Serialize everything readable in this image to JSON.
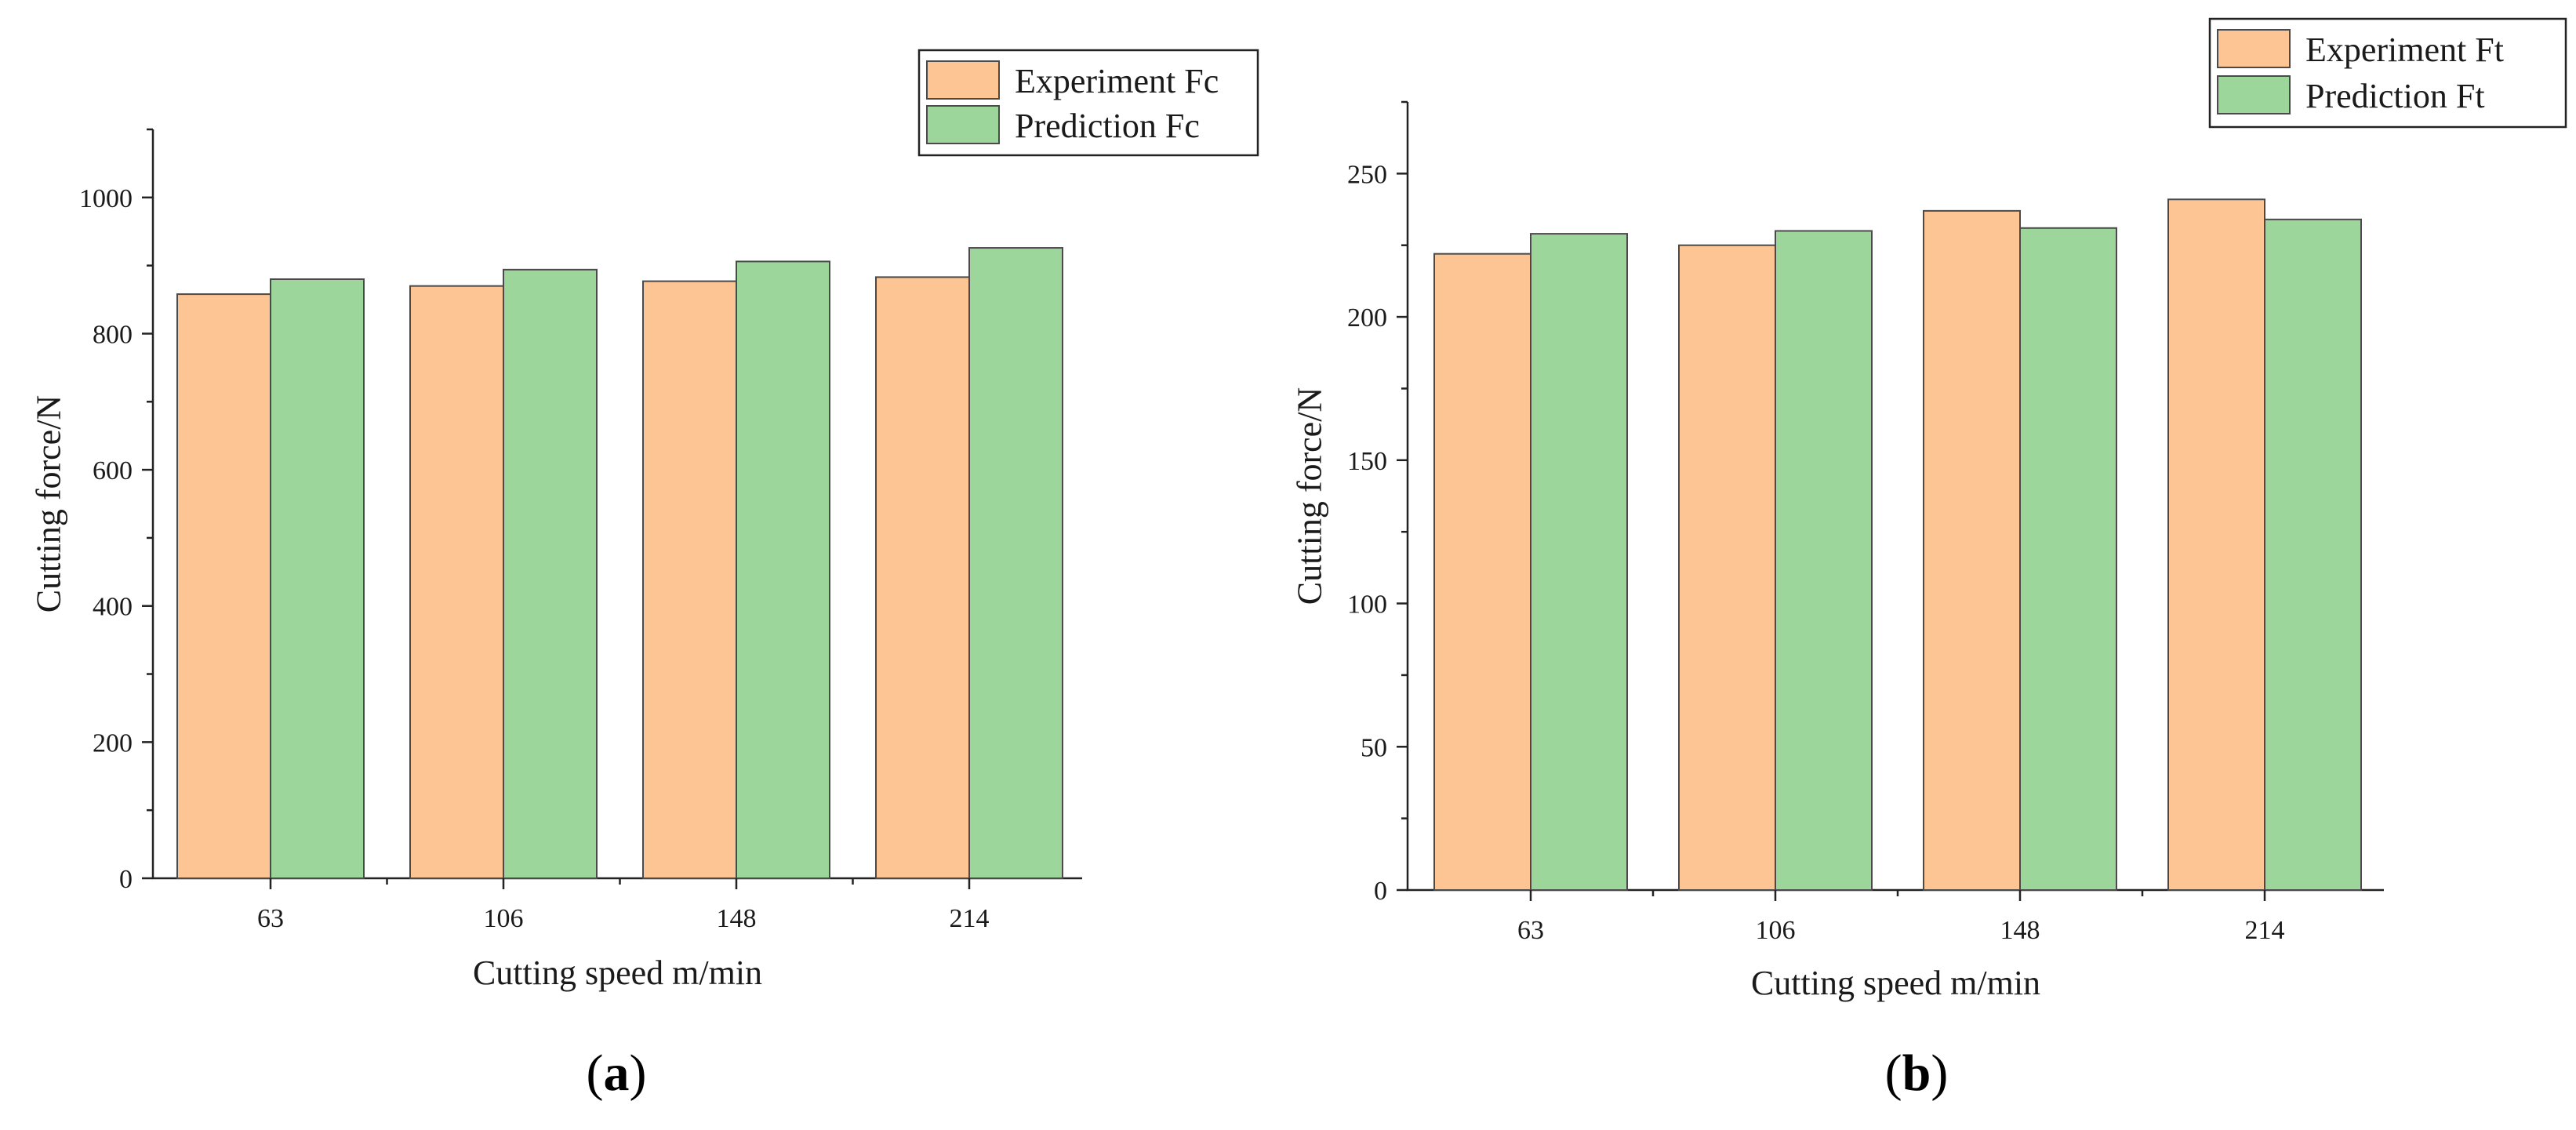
{
  "chart_data": [
    {
      "type": "bar",
      "panel": "a",
      "title": "",
      "xlabel": "Cutting speed m/min",
      "ylabel": "Cutting force/N",
      "categories": [
        "63",
        "106",
        "148",
        "214"
      ],
      "ylim": [
        0,
        1100
      ],
      "yticks": [
        0,
        200,
        400,
        600,
        800,
        1000
      ],
      "series": [
        {
          "name": "Experiment Fc",
          "color": "#fcc593",
          "values": [
            858,
            870,
            877,
            883
          ]
        },
        {
          "name": "Prediction Fc",
          "color": "#9cd69b",
          "values": [
            880,
            894,
            906,
            926
          ]
        }
      ],
      "legend_position": "top-right",
      "grid": false
    },
    {
      "type": "bar",
      "panel": "b",
      "title": "",
      "xlabel": "Cutting speed m/min",
      "ylabel": "Cutting force/N",
      "categories": [
        "63",
        "106",
        "148",
        "214"
      ],
      "ylim": [
        0,
        275
      ],
      "yticks": [
        0,
        50,
        100,
        150,
        200,
        250
      ],
      "series": [
        {
          "name": "Experiment Ft",
          "color": "#fcc593",
          "values": [
            222,
            225,
            237,
            241
          ]
        },
        {
          "name": "Prediction Ft",
          "color": "#9cd69b",
          "values": [
            229,
            230,
            231,
            234
          ]
        }
      ],
      "legend_position": "top-right",
      "grid": false
    }
  ],
  "captions": {
    "a": {
      "open": "(",
      "letter": "a",
      "close": ")"
    },
    "b": {
      "open": "(",
      "letter": "b",
      "close": ")"
    }
  }
}
